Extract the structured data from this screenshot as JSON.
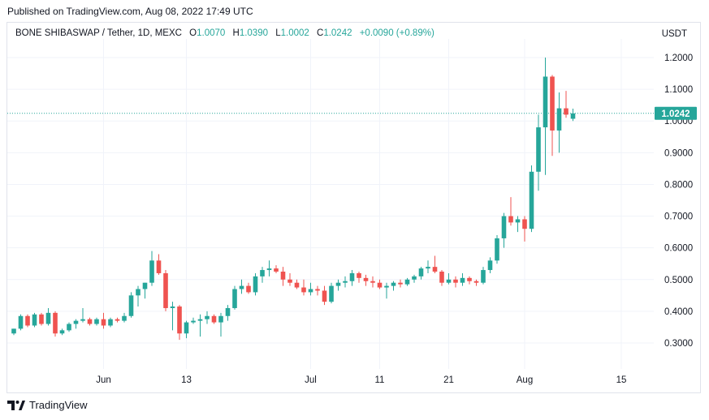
{
  "header": {
    "published": "Published on TradingView.com, Aug 08, 2022 17:49 UTC"
  },
  "legend": {
    "symbol": "BONE SHIBASWAP / Tether, 1D, MEXC",
    "o_label": "O",
    "o_value": "1.0070",
    "h_label": "H",
    "h_value": "1.0390",
    "l_label": "L",
    "l_value": "1.0002",
    "c_label": "C",
    "c_value": "1.0242",
    "change": "+0.0090 (+0.89%)"
  },
  "currency": "USDT",
  "footer": {
    "brand": "TradingView"
  },
  "colors": {
    "up": "#26a69a",
    "down": "#ef5350",
    "grid": "#f0f3fa",
    "text": "#131722"
  },
  "chart_data": {
    "type": "candlestick",
    "y_ticks": [
      "1.2000",
      "1.1000",
      "1.0000",
      "0.9000",
      "0.8000",
      "0.7000",
      "0.6000",
      "0.5000",
      "0.4000",
      "0.3000"
    ],
    "y_range": [
      0.22,
      1.27
    ],
    "x_ticks": [
      {
        "label": "Jun",
        "index": 13
      },
      {
        "label": "13",
        "index": 25
      },
      {
        "label": "Jul",
        "index": 43
      },
      {
        "label": "11",
        "index": 53
      },
      {
        "label": "21",
        "index": 63
      },
      {
        "label": "Aug",
        "index": 74
      },
      {
        "label": "15",
        "index": 88
      }
    ],
    "last_price": "1.0242",
    "candles": [
      [
        0.33,
        0.345,
        0.325,
        0.345
      ],
      [
        0.345,
        0.39,
        0.34,
        0.385
      ],
      [
        0.385,
        0.39,
        0.35,
        0.355
      ],
      [
        0.355,
        0.395,
        0.35,
        0.39
      ],
      [
        0.39,
        0.395,
        0.355,
        0.36
      ],
      [
        0.36,
        0.41,
        0.355,
        0.395
      ],
      [
        0.395,
        0.4,
        0.32,
        0.33
      ],
      [
        0.33,
        0.345,
        0.325,
        0.34
      ],
      [
        0.34,
        0.365,
        0.335,
        0.36
      ],
      [
        0.36,
        0.375,
        0.345,
        0.37
      ],
      [
        0.37,
        0.41,
        0.365,
        0.375
      ],
      [
        0.375,
        0.38,
        0.355,
        0.36
      ],
      [
        0.36,
        0.38,
        0.355,
        0.375
      ],
      [
        0.375,
        0.395,
        0.345,
        0.355
      ],
      [
        0.355,
        0.38,
        0.35,
        0.375
      ],
      [
        0.375,
        0.38,
        0.365,
        0.37
      ],
      [
        0.37,
        0.395,
        0.365,
        0.385
      ],
      [
        0.385,
        0.46,
        0.38,
        0.45
      ],
      [
        0.45,
        0.48,
        0.415,
        0.47
      ],
      [
        0.47,
        0.49,
        0.44,
        0.49
      ],
      [
        0.49,
        0.59,
        0.48,
        0.56
      ],
      [
        0.56,
        0.58,
        0.515,
        0.52
      ],
      [
        0.52,
        0.53,
        0.4,
        0.41
      ],
      [
        0.41,
        0.43,
        0.34,
        0.415
      ],
      [
        0.415,
        0.42,
        0.31,
        0.33
      ],
      [
        0.33,
        0.37,
        0.315,
        0.365
      ],
      [
        0.365,
        0.38,
        0.36,
        0.37
      ],
      [
        0.37,
        0.39,
        0.32,
        0.375
      ],
      [
        0.375,
        0.4,
        0.36,
        0.385
      ],
      [
        0.385,
        0.39,
        0.36,
        0.365
      ],
      [
        0.365,
        0.395,
        0.32,
        0.385
      ],
      [
        0.385,
        0.42,
        0.37,
        0.41
      ],
      [
        0.41,
        0.48,
        0.405,
        0.47
      ],
      [
        0.47,
        0.5,
        0.455,
        0.48
      ],
      [
        0.48,
        0.49,
        0.455,
        0.46
      ],
      [
        0.46,
        0.52,
        0.45,
        0.51
      ],
      [
        0.51,
        0.54,
        0.49,
        0.53
      ],
      [
        0.53,
        0.56,
        0.51,
        0.535
      ],
      [
        0.535,
        0.545,
        0.52,
        0.525
      ],
      [
        0.525,
        0.54,
        0.48,
        0.5
      ],
      [
        0.5,
        0.52,
        0.48,
        0.49
      ],
      [
        0.49,
        0.5,
        0.47,
        0.475
      ],
      [
        0.475,
        0.5,
        0.45,
        0.46
      ],
      [
        0.46,
        0.49,
        0.45,
        0.47
      ],
      [
        0.47,
        0.48,
        0.45,
        0.465
      ],
      [
        0.465,
        0.48,
        0.42,
        0.43
      ],
      [
        0.43,
        0.49,
        0.425,
        0.48
      ],
      [
        0.48,
        0.5,
        0.465,
        0.49
      ],
      [
        0.49,
        0.51,
        0.475,
        0.495
      ],
      [
        0.495,
        0.53,
        0.48,
        0.52
      ],
      [
        0.52,
        0.525,
        0.49,
        0.505
      ],
      [
        0.505,
        0.515,
        0.48,
        0.495
      ],
      [
        0.495,
        0.51,
        0.475,
        0.49
      ],
      [
        0.49,
        0.5,
        0.47,
        0.475
      ],
      [
        0.475,
        0.49,
        0.44,
        0.48
      ],
      [
        0.48,
        0.495,
        0.465,
        0.49
      ],
      [
        0.49,
        0.5,
        0.475,
        0.485
      ],
      [
        0.485,
        0.505,
        0.48,
        0.5
      ],
      [
        0.5,
        0.515,
        0.49,
        0.51
      ],
      [
        0.51,
        0.54,
        0.5,
        0.535
      ],
      [
        0.535,
        0.56,
        0.52,
        0.54
      ],
      [
        0.54,
        0.575,
        0.52,
        0.525
      ],
      [
        0.525,
        0.53,
        0.48,
        0.49
      ],
      [
        0.49,
        0.52,
        0.485,
        0.5
      ],
      [
        0.5,
        0.51,
        0.475,
        0.49
      ],
      [
        0.49,
        0.52,
        0.48,
        0.505
      ],
      [
        0.505,
        0.51,
        0.485,
        0.495
      ],
      [
        0.495,
        0.5,
        0.48,
        0.49
      ],
      [
        0.49,
        0.54,
        0.485,
        0.53
      ],
      [
        0.53,
        0.57,
        0.52,
        0.56
      ],
      [
        0.56,
        0.64,
        0.55,
        0.63
      ],
      [
        0.63,
        0.71,
        0.6,
        0.7
      ],
      [
        0.7,
        0.76,
        0.67,
        0.68
      ],
      [
        0.68,
        0.7,
        0.65,
        0.69
      ],
      [
        0.69,
        0.7,
        0.62,
        0.66
      ],
      [
        0.66,
        0.86,
        0.65,
        0.84
      ],
      [
        0.84,
        1.02,
        0.78,
        0.98
      ],
      [
        0.98,
        1.2,
        0.83,
        1.14
      ],
      [
        1.14,
        1.145,
        0.89,
        0.97
      ],
      [
        0.97,
        1.09,
        0.9,
        1.04
      ],
      [
        1.04,
        1.095,
        1.01,
        1.02
      ],
      [
        1.007,
        1.039,
        1.0,
        1.024
      ]
    ]
  }
}
